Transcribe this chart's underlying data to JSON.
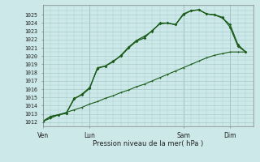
{
  "title": "",
  "xlabel": "Pression niveau de la mer( hPa )",
  "ylabel": "",
  "bg_color": "#cce8e8",
  "grid_color": "#aacccc",
  "line_color": "#1a5c1a",
  "ylim": [
    1011.5,
    1026.2
  ],
  "yticks": [
    1012,
    1013,
    1014,
    1015,
    1016,
    1017,
    1018,
    1019,
    1020,
    1021,
    1022,
    1023,
    1024,
    1025
  ],
  "xtick_labels": [
    "Ven",
    "Lun",
    "Sam",
    "Dim"
  ],
  "xtick_positions": [
    0,
    24,
    72,
    96
  ],
  "xlim": [
    0,
    108
  ],
  "vlines": [
    0,
    24,
    72,
    96
  ],
  "x_dense": [
    0,
    4,
    8,
    12,
    16,
    20,
    24,
    28,
    32,
    36,
    40,
    44,
    48,
    52,
    56,
    60,
    64,
    68,
    72,
    76,
    80,
    84,
    88,
    92,
    96,
    100,
    104
  ],
  "y_line1": [
    1012.1,
    1012.7,
    1012.9,
    1013.1,
    1014.8,
    1015.4,
    1016.2,
    1018.5,
    1018.8,
    1019.4,
    1020.0,
    1021.0,
    1021.8,
    1022.2,
    1023.1,
    1023.9,
    1024.0,
    1023.8,
    1025.0,
    1025.5,
    1025.6,
    1025.1,
    1025.0,
    1024.6,
    1023.8,
    1021.4,
    1020.5
  ],
  "y_line2": [
    1012.1,
    1012.7,
    1012.9,
    1013.1,
    1014.9,
    1015.3,
    1016.1,
    1018.6,
    1018.8,
    1019.3,
    1020.1,
    1021.1,
    1021.9,
    1022.4,
    1023.0,
    1024.0,
    1024.0,
    1023.8,
    1025.1,
    1025.5,
    1025.6,
    1025.1,
    1025.0,
    1024.7,
    1023.5,
    1021.2,
    1020.5
  ],
  "y_line3": [
    1012.1,
    1012.5,
    1012.9,
    1013.2,
    1013.5,
    1013.8,
    1014.2,
    1014.5,
    1014.9,
    1015.2,
    1015.6,
    1015.9,
    1016.3,
    1016.6,
    1017.0,
    1017.4,
    1017.8,
    1018.2,
    1018.6,
    1019.0,
    1019.4,
    1019.8,
    1020.1,
    1020.3,
    1020.5,
    1020.5,
    1020.5
  ]
}
